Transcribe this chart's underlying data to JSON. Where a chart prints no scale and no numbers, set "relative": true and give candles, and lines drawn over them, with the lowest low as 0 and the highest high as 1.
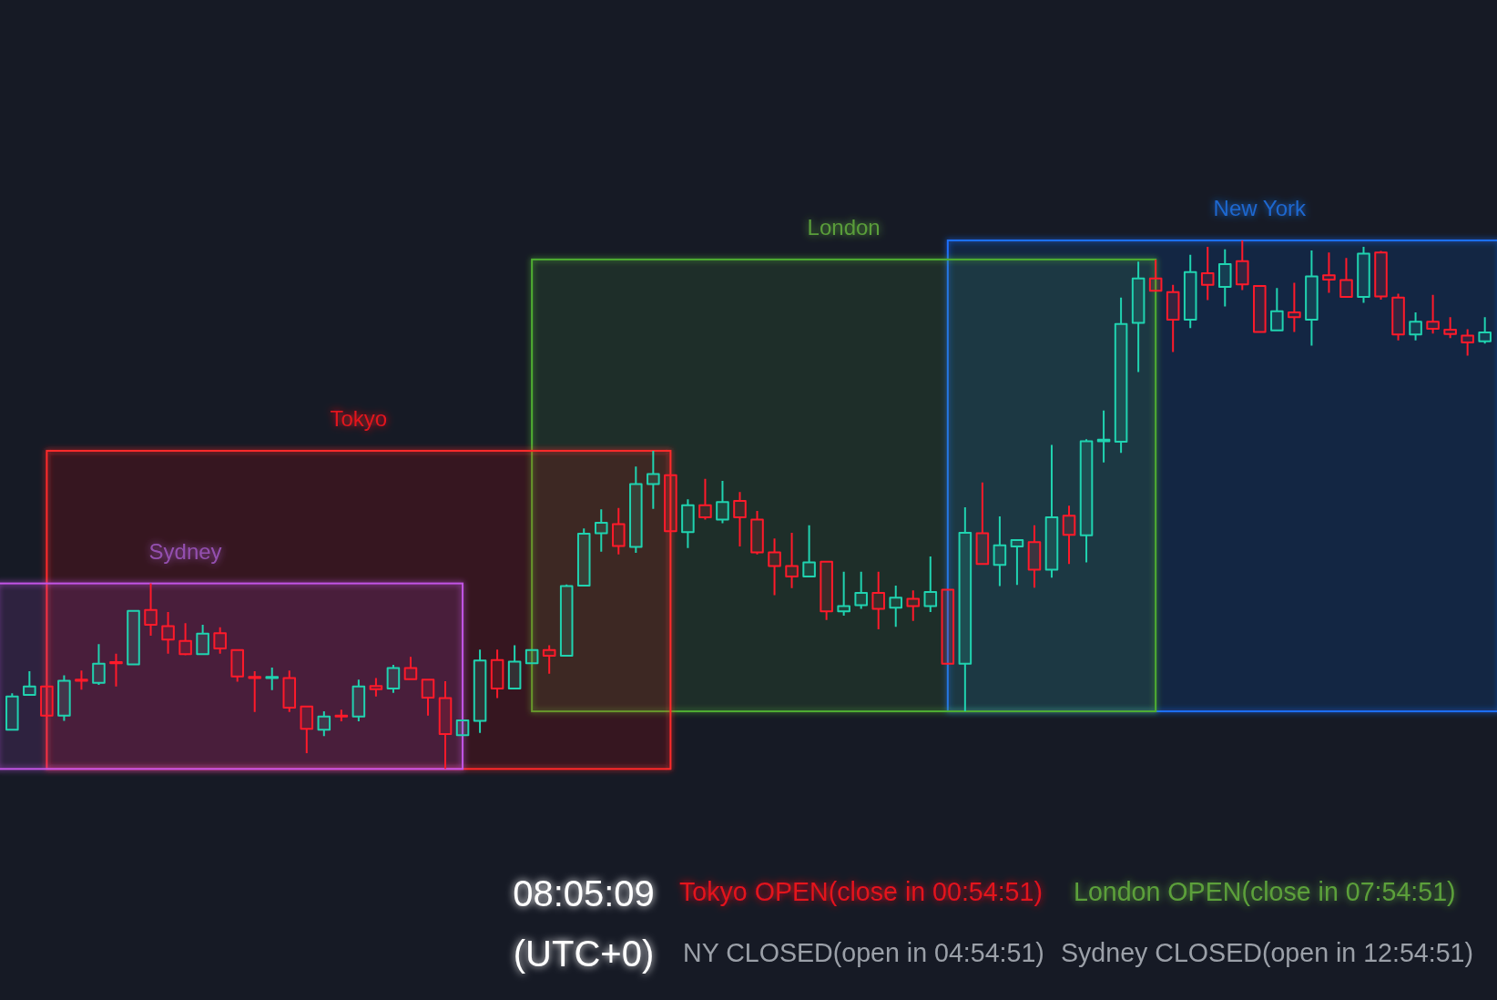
{
  "chart_data": {
    "type": "candlestick",
    "relative": true,
    "categories": [
      null,
      null,
      null,
      null,
      null,
      null,
      null,
      null,
      null,
      null,
      null,
      null,
      null,
      null,
      null,
      null,
      null,
      null,
      null,
      null,
      null,
      null,
      null,
      null,
      null,
      null,
      null,
      null,
      null,
      null,
      null,
      null,
      null,
      null,
      null,
      null,
      null,
      null,
      null,
      null,
      null,
      null,
      null,
      null,
      null,
      null,
      null,
      null,
      null,
      null,
      null,
      null,
      null,
      null,
      null,
      null,
      null,
      null,
      null,
      null,
      null,
      null,
      null,
      null,
      null,
      null,
      null,
      null,
      null,
      null,
      null,
      null,
      null,
      null,
      null,
      null,
      null,
      null,
      null,
      null,
      null,
      null,
      null,
      null,
      null,
      null
    ],
    "ohlc": [
      [
        0.074,
        0.143,
        0.074,
        0.137
      ],
      [
        0.14,
        0.185,
        0.14,
        0.156
      ],
      [
        0.156,
        0.156,
        0.101,
        0.101
      ],
      [
        0.101,
        0.177,
        0.091,
        0.167
      ],
      [
        0.169,
        0.186,
        0.15,
        0.167
      ],
      [
        0.163,
        0.236,
        0.159,
        0.199
      ],
      [
        0.202,
        0.218,
        0.156,
        0.2
      ],
      [
        0.198,
        0.299,
        0.198,
        0.299
      ],
      [
        0.301,
        0.351,
        0.252,
        0.273
      ],
      [
        0.27,
        0.297,
        0.218,
        0.245
      ],
      [
        0.242,
        0.276,
        0.215,
        0.217
      ],
      [
        0.217,
        0.273,
        0.217,
        0.256
      ],
      [
        0.257,
        0.268,
        0.218,
        0.228
      ],
      [
        0.225,
        0.225,
        0.165,
        0.175
      ],
      [
        0.174,
        0.185,
        0.108,
        0.172
      ],
      [
        0.172,
        0.192,
        0.149,
        0.174
      ],
      [
        0.172,
        0.186,
        0.108,
        0.116
      ],
      [
        0.118,
        0.118,
        0.03,
        0.076
      ],
      [
        0.074,
        0.109,
        0.062,
        0.099
      ],
      [
        0.101,
        0.112,
        0.09,
        0.099
      ],
      [
        0.099,
        0.169,
        0.09,
        0.156
      ],
      [
        0.157,
        0.172,
        0.137,
        0.151
      ],
      [
        0.152,
        0.197,
        0.144,
        0.191
      ],
      [
        0.191,
        0.212,
        0.168,
        0.17
      ],
      [
        0.169,
        0.169,
        0.101,
        0.135
      ],
      [
        0.134,
        0.166,
        0,
        0.066
      ],
      [
        0.064,
        0.092,
        0.064,
        0.092
      ],
      [
        0.091,
        0.226,
        0.068,
        0.205
      ],
      [
        0.206,
        0.226,
        0.134,
        0.152
      ],
      [
        0.152,
        0.234,
        0.152,
        0.203
      ],
      [
        0.2,
        0.225,
        0.2,
        0.225
      ],
      [
        0.225,
        0.234,
        0.18,
        0.214
      ],
      [
        0.214,
        0.349,
        0.214,
        0.346
      ],
      [
        0.347,
        0.455,
        0.347,
        0.445
      ],
      [
        0.446,
        0.491,
        0.411,
        0.466
      ],
      [
        0.463,
        0.494,
        0.406,
        0.422
      ],
      [
        0.42,
        0.572,
        0.409,
        0.539
      ],
      [
        0.539,
        0.602,
        0.492,
        0.558
      ],
      [
        0.556,
        0.556,
        0.45,
        0.45
      ],
      [
        0.448,
        0.51,
        0.418,
        0.499
      ],
      [
        0.499,
        0.549,
        0.472,
        0.476
      ],
      [
        0.472,
        0.545,
        0.465,
        0.505
      ],
      [
        0.507,
        0.524,
        0.421,
        0.476
      ],
      [
        0.472,
        0.488,
        0.406,
        0.41
      ],
      [
        0.41,
        0.436,
        0.329,
        0.384
      ],
      [
        0.384,
        0.447,
        0.342,
        0.364
      ],
      [
        0.364,
        0.461,
        0.364,
        0.391
      ],
      [
        0.392,
        0.392,
        0.282,
        0.298
      ],
      [
        0.298,
        0.373,
        0.29,
        0.308
      ],
      [
        0.31,
        0.373,
        0.303,
        0.333
      ],
      [
        0.333,
        0.373,
        0.264,
        0.303
      ],
      [
        0.305,
        0.347,
        0.269,
        0.324
      ],
      [
        0.322,
        0.338,
        0.28,
        0.308
      ],
      [
        0.308,
        0.402,
        0.297,
        0.335
      ],
      [
        0.339,
        0.339,
        0.199,
        0.199
      ],
      [
        0.199,
        0.495,
        0.109,
        0.447
      ],
      [
        0.446,
        0.542,
        0.386,
        0.388
      ],
      [
        0.386,
        0.478,
        0.346,
        0.423
      ],
      [
        0.421,
        0.433,
        0.348,
        0.433
      ],
      [
        0.429,
        0.461,
        0.343,
        0.377
      ],
      [
        0.377,
        0.613,
        0.362,
        0.476
      ],
      [
        0.479,
        0.498,
        0.388,
        0.443
      ],
      [
        0.442,
        0.624,
        0.391,
        0.62
      ],
      [
        0.62,
        0.678,
        0.58,
        0.623
      ],
      [
        0.619,
        0.892,
        0.598,
        0.842
      ],
      [
        0.844,
        0.96,
        0.751,
        0.928
      ],
      [
        0.928,
        0.964,
        0.905,
        0.905
      ],
      [
        0.902,
        0.916,
        0.789,
        0.85
      ],
      [
        0.85,
        0.973,
        0.834,
        0.94
      ],
      [
        0.938,
        0.988,
        0.887,
        0.916
      ],
      [
        0.912,
        0.983,
        0.875,
        0.955
      ],
      [
        0.961,
        1,
        0.906,
        0.917
      ],
      [
        0.914,
        0.914,
        0.826,
        0.827
      ],
      [
        0.83,
        0.91,
        0.829,
        0.866
      ],
      [
        0.864,
        0.92,
        0.827,
        0.855
      ],
      [
        0.85,
        0.981,
        0.801,
        0.932
      ],
      [
        0.934,
        0.977,
        0.901,
        0.926
      ],
      [
        0.925,
        0.967,
        0.893,
        0.893
      ],
      [
        0.893,
        0.988,
        0.882,
        0.975
      ],
      [
        0.977,
        0.98,
        0.888,
        0.894
      ],
      [
        0.892,
        0.899,
        0.811,
        0.822
      ],
      [
        0.822,
        0.864,
        0.811,
        0.846
      ],
      [
        0.846,
        0.897,
        0.824,
        0.833
      ],
      [
        0.831,
        0.855,
        0.815,
        0.823
      ],
      [
        0.82,
        0.832,
        0.782,
        0.807
      ],
      [
        0.809,
        0.855,
        0.805,
        0.826
      ]
    ],
    "annotations": [
      "New York",
      "London",
      "Tokyo",
      "Sydney",
      "08:05:09",
      "Tokyo OPEN(close in 00:54:51)",
      "London OPEN(close in 07:54:51)",
      "(UTC+0)",
      "NY CLOSED(open in 04:54:51)",
      "Sydney CLOSED(open in 12:54:51)"
    ]
  }
}
